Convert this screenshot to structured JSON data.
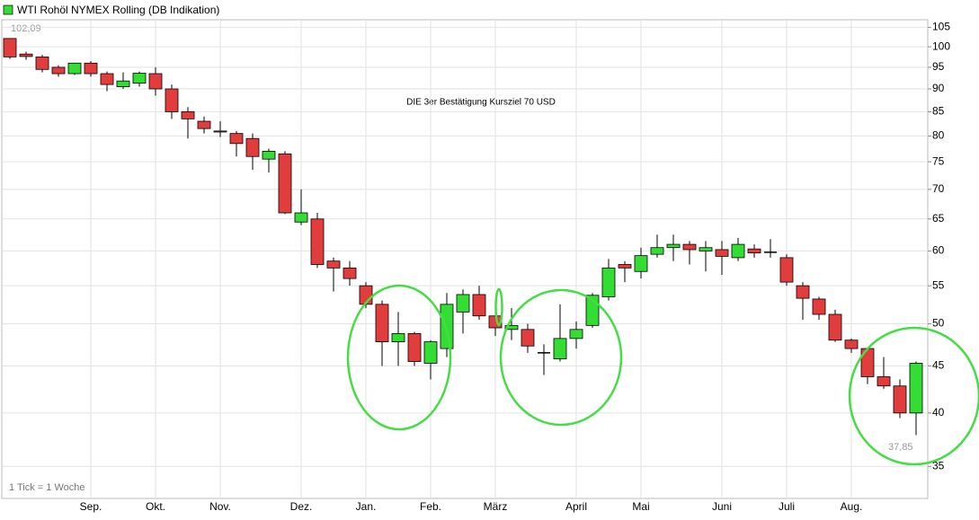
{
  "chart_data": {
    "type": "candlestick",
    "title": "WTI Rohöl NYMEX Rolling (DB Indikation)",
    "annotation": "DIE 3er Bestätigung Kursziel 70 USD",
    "high_label": "102,09",
    "low_label": "37,85",
    "footnote": "1 Tick = 1 Woche",
    "categories": [
      null,
      null,
      null,
      null,
      null,
      "Sep.",
      null,
      null,
      null,
      "Okt.",
      null,
      null,
      null,
      "Nov.",
      null,
      null,
      null,
      null,
      "Dez.",
      null,
      null,
      null,
      "Jan.",
      null,
      null,
      null,
      "Feb.",
      null,
      null,
      null,
      "März",
      null,
      null,
      null,
      null,
      "April",
      null,
      null,
      null,
      "Mai",
      null,
      null,
      null,
      null,
      "Juni",
      null,
      null,
      null,
      "Juli",
      null,
      null,
      null,
      "Aug.",
      null,
      null,
      null,
      null
    ],
    "open": [
      102.1,
      98.2,
      97.5,
      95,
      93.5,
      96,
      93.5,
      90.5,
      91.3,
      93.5,
      90,
      85,
      83,
      81,
      80.5,
      79.5,
      75.5,
      76.5,
      64.5,
      65,
      58.5,
      57.5,
      55,
      52.5,
      47.8,
      48.8,
      45.3,
      47,
      51.5,
      53.8,
      51,
      49.3,
      49.3,
      46.5,
      45.8,
      48.2,
      49.8,
      53.5,
      58,
      57,
      59.5,
      60.5,
      61,
      60,
      60.2,
      59,
      60.3,
      59.8,
      59,
      55,
      53.2,
      51.2,
      48,
      47,
      43.8,
      42.8,
      40
    ],
    "high": [
      102.09,
      98.8,
      98,
      95.5,
      96,
      96.5,
      94,
      93.8,
      94,
      95,
      91,
      86,
      84,
      83,
      81,
      80.5,
      77.5,
      77,
      70,
      66,
      59,
      58.5,
      55.5,
      53,
      51.5,
      49,
      48,
      54,
      54.5,
      55,
      52,
      52,
      50,
      47.5,
      52.5,
      50.3,
      54,
      58.8,
      58.5,
      60.5,
      62.5,
      62.5,
      61.5,
      61.5,
      61.5,
      62,
      61,
      61.8,
      59.5,
      55.5,
      53.5,
      51.8,
      48.2,
      47,
      46,
      43.5,
      45.5
    ],
    "low": [
      97,
      96.8,
      93.8,
      92.8,
      93.2,
      92.8,
      89.5,
      90,
      90.5,
      88.5,
      83.5,
      79.5,
      80.5,
      79.8,
      76,
      73.5,
      73,
      65.8,
      64,
      57.5,
      54.2,
      55,
      52,
      45,
      45,
      45,
      43.5,
      46,
      48.8,
      50.5,
      48.5,
      48,
      46.5,
      44,
      45.5,
      47,
      49.5,
      53,
      55.5,
      56,
      59,
      58.5,
      58,
      57,
      56.5,
      58.5,
      59,
      59,
      55,
      50.5,
      50.5,
      47.8,
      46.5,
      43,
      42.5,
      39.5,
      37.85
    ],
    "close": [
      97.5,
      97.6,
      94.5,
      93.5,
      96,
      93.5,
      91,
      91.8,
      93.6,
      90,
      85,
      83.5,
      81.5,
      80.8,
      78.5,
      76,
      77,
      66,
      66,
      58,
      57.5,
      56,
      52.5,
      47.8,
      48.8,
      45.5,
      47.8,
      52.5,
      53.8,
      51,
      49.5,
      49.8,
      47.3,
      46.5,
      48.2,
      49.3,
      53.7,
      57.5,
      57.5,
      59.3,
      60.5,
      61,
      60.2,
      60.5,
      59.2,
      61,
      59.7,
      59.8,
      55.5,
      53.3,
      51.2,
      48,
      47,
      43.8,
      42.8,
      40,
      45.3
    ],
    "up_color": "#33dd33",
    "down_color": "#e23d3d",
    "log_scale": true,
    "ylim": [
      32.3,
      107
    ],
    "yticks": [
      35,
      40,
      45,
      50,
      55,
      60,
      65,
      70,
      75,
      80,
      85,
      90,
      95,
      100,
      105
    ],
    "grid": true
  }
}
